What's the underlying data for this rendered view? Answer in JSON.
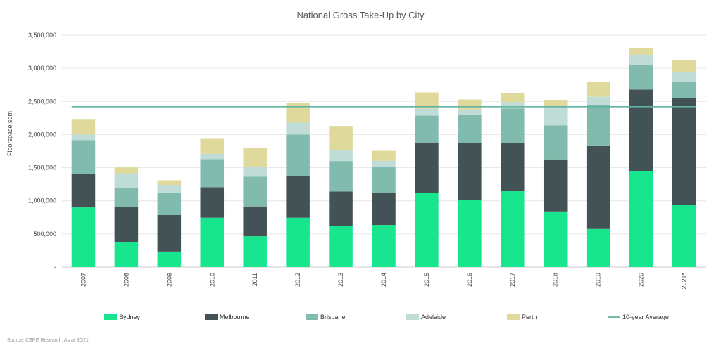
{
  "chart_data": {
    "type": "bar",
    "stacked": true,
    "title": "National Gross Take-Up by City",
    "xlabel": "",
    "ylabel": "Floorspace sqm",
    "ylim": [
      0,
      3500000
    ],
    "yticks": [
      0,
      500000,
      1000000,
      1500000,
      2000000,
      2500000,
      3000000,
      3500000
    ],
    "ytick_labels": [
      "-",
      "500,000",
      "1,000,000",
      "1,500,000",
      "2,000,000",
      "2,500,000",
      "3,000,000",
      "3,500,000"
    ],
    "categories": [
      "2007",
      "2008",
      "2009",
      "2010",
      "2011",
      "2012",
      "2013",
      "2014",
      "2015",
      "2016",
      "2017",
      "2018",
      "2019",
      "2020",
      "2021*"
    ],
    "series": [
      {
        "name": "Sydney",
        "color": "#17e68f",
        "values": [
          900000,
          375000,
          235000,
          745000,
          465000,
          745000,
          615000,
          635000,
          1115000,
          1010000,
          1145000,
          840000,
          575000,
          1450000,
          935000
        ]
      },
      {
        "name": "Melbourne",
        "color": "#435254",
        "values": [
          500000,
          535000,
          550000,
          460000,
          450000,
          625000,
          525000,
          485000,
          765000,
          865000,
          725000,
          785000,
          1250000,
          1230000,
          1615000
        ]
      },
      {
        "name": "Brisbane",
        "color": "#80bbad",
        "values": [
          515000,
          280000,
          340000,
          425000,
          450000,
          630000,
          460000,
          395000,
          405000,
          420000,
          525000,
          515000,
          620000,
          375000,
          240000
        ]
      },
      {
        "name": "Adelaide",
        "color": "#c0dcd6",
        "values": [
          85000,
          225000,
          115000,
          80000,
          150000,
          180000,
          170000,
          90000,
          105000,
          85000,
          95000,
          280000,
          125000,
          150000,
          150000
        ]
      },
      {
        "name": "Perth",
        "color": "#dfd99b",
        "values": [
          225000,
          90000,
          70000,
          225000,
          285000,
          295000,
          360000,
          150000,
          245000,
          150000,
          140000,
          105000,
          220000,
          95000,
          180000
        ]
      }
    ],
    "average": {
      "name": "10-year Average",
      "color": "#5fb3a1",
      "value": 2420000
    },
    "grid": true,
    "legend_position": "bottom",
    "source": "Source: CBRE Research, As at 3Q21"
  }
}
